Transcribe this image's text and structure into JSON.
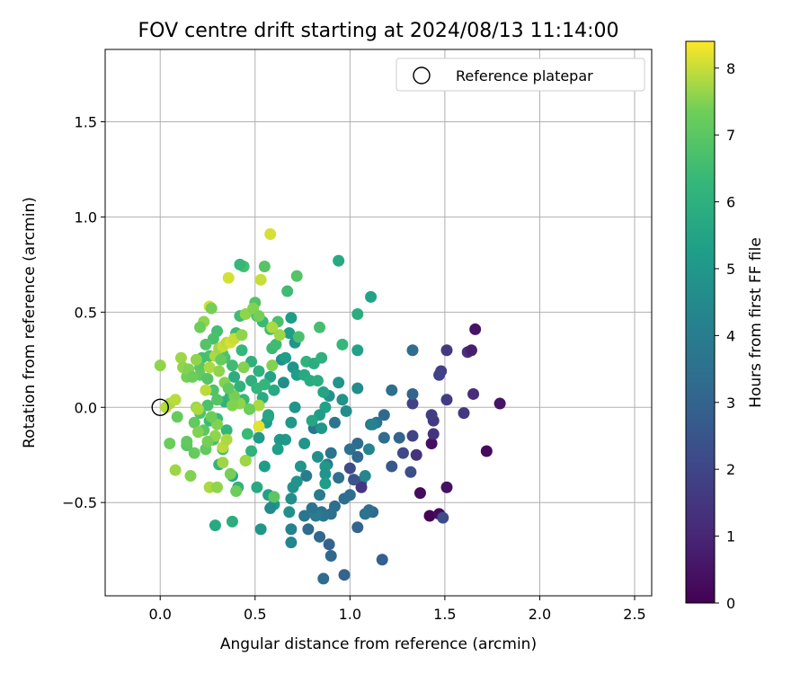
{
  "chart_data": {
    "type": "scatter",
    "title": "FOV centre drift starting at 2024/08/13 11:14:00",
    "xlabel": "Angular distance from reference (arcmin)",
    "ylabel": "Rotation from reference (arcmin)",
    "xlim": [
      -0.29,
      2.59
    ],
    "ylim": [
      -0.99,
      1.88
    ],
    "xticks": [
      0.0,
      0.5,
      1.0,
      1.5,
      2.0,
      2.5
    ],
    "xtick_labels": [
      "0.0",
      "0.5",
      "1.0",
      "1.5",
      "2.0",
      "2.5"
    ],
    "yticks": [
      -0.5,
      0.0,
      0.5,
      1.0,
      1.5
    ],
    "ytick_labels": [
      "−0.5",
      "0.0",
      "0.5",
      "1.0",
      "1.5"
    ],
    "grid": true,
    "legend": {
      "position": "top-right",
      "label": "Reference platepar",
      "marker": "open-circle"
    },
    "reference_point": {
      "x": 0.0,
      "y": 0.0
    },
    "colorbar": {
      "label": "Hours from first FF file",
      "range": [
        0,
        8.4
      ],
      "ticks": [
        0,
        1,
        2,
        3,
        4,
        5,
        6,
        7,
        8
      ],
      "tick_labels": [
        "0",
        "1",
        "2",
        "3",
        "4",
        "5",
        "6",
        "7",
        "8"
      ],
      "colormap": "viridis"
    },
    "points": [
      [
        1.66,
        0.41,
        0.5
      ],
      [
        1.79,
        0.02,
        0.5
      ],
      [
        1.72,
        -0.23,
        0.3
      ],
      [
        1.51,
        -0.42,
        0.4
      ],
      [
        1.37,
        -0.45,
        0.3
      ],
      [
        1.42,
        -0.57,
        0.1
      ],
      [
        1.43,
        -0.19,
        0.4
      ],
      [
        1.47,
        -0.56,
        0.3
      ],
      [
        1.62,
        0.29,
        1.3
      ],
      [
        1.64,
        0.3,
        0.8
      ],
      [
        1.51,
        0.3,
        1.6
      ],
      [
        1.48,
        0.19,
        1.8
      ],
      [
        1.47,
        0.17,
        1.9
      ],
      [
        1.51,
        0.04,
        1.7
      ],
      [
        1.6,
        -0.03,
        1.6
      ],
      [
        1.65,
        0.07,
        1.2
      ],
      [
        1.44,
        -0.07,
        1.6
      ],
      [
        1.43,
        -0.04,
        1.7
      ],
      [
        1.44,
        -0.14,
        1.4
      ],
      [
        1.35,
        -0.25,
        1.4
      ],
      [
        1.33,
        -0.15,
        1.9
      ],
      [
        1.28,
        -0.24,
        2.1
      ],
      [
        1.33,
        0.02,
        1.9
      ],
      [
        1.32,
        -0.34,
        2.3
      ],
      [
        1.49,
        -0.58,
        2.2
      ],
      [
        1.22,
        -0.31,
        2.6
      ],
      [
        1.33,
        0.3,
        3.3
      ],
      [
        1.33,
        0.07,
        3.0
      ],
      [
        1.26,
        -0.16,
        3.0
      ],
      [
        1.22,
        0.09,
        3.4
      ],
      [
        1.18,
        -0.04,
        3.2
      ],
      [
        1.18,
        -0.16,
        3.3
      ],
      [
        1.14,
        -0.08,
        3.6
      ],
      [
        1.11,
        -0.09,
        3.6
      ],
      [
        1.17,
        -0.8,
        2.9
      ],
      [
        1.12,
        -0.55,
        3.2
      ],
      [
        1.1,
        -0.54,
        3.4
      ],
      [
        1.08,
        -0.56,
        3.6
      ],
      [
        1.06,
        -0.39,
        3.4
      ],
      [
        1.06,
        -0.42,
        1.5
      ],
      [
        1.04,
        -0.63,
        3.0
      ],
      [
        1.04,
        -0.26,
        3.1
      ],
      [
        1.04,
        -0.19,
        3.3
      ],
      [
        1.02,
        -0.38,
        2.5
      ],
      [
        1.0,
        -0.32,
        2.2
      ],
      [
        1.0,
        -0.46,
        3.4
      ],
      [
        1.0,
        -0.22,
        3.5
      ],
      [
        0.97,
        -0.48,
        3.4
      ],
      [
        0.97,
        -0.88,
        3.0
      ],
      [
        0.94,
        -0.37,
        3.5
      ],
      [
        0.92,
        -0.52,
        3.4
      ],
      [
        0.9,
        -0.56,
        3.5
      ],
      [
        0.89,
        -0.72,
        3.0
      ],
      [
        0.9,
        -0.78,
        3.2
      ],
      [
        0.86,
        -0.9,
        3.3
      ],
      [
        0.85,
        -0.55,
        3.5
      ],
      [
        0.86,
        -0.57,
        3.7
      ],
      [
        0.84,
        -0.46,
        3.9
      ],
      [
        0.84,
        -0.68,
        3.2
      ],
      [
        0.9,
        -0.24,
        3.6
      ],
      [
        0.88,
        -0.3,
        3.8
      ],
      [
        0.92,
        -0.08,
        3.7
      ],
      [
        0.82,
        -0.57,
        3.9
      ],
      [
        0.81,
        -0.11,
        3.8
      ],
      [
        0.8,
        -0.53,
        3.6
      ],
      [
        0.78,
        -0.64,
        3.3
      ],
      [
        0.77,
        -0.36,
        3.9
      ],
      [
        0.76,
        -0.57,
        3.7
      ],
      [
        1.1,
        -0.22,
        4.3
      ],
      [
        1.12,
        -0.09,
        4.2
      ],
      [
        1.08,
        -0.36,
        4.4
      ],
      [
        1.04,
        0.1,
        4.6
      ],
      [
        1.04,
        0.3,
        5.4
      ],
      [
        1.04,
        0.49,
        5.9
      ],
      [
        1.11,
        0.58,
        5.4
      ],
      [
        0.94,
        0.77,
        5.7
      ],
      [
        0.94,
        0.13,
        4.9
      ],
      [
        0.96,
        0.04,
        4.8
      ],
      [
        0.98,
        -0.02,
        4.6
      ],
      [
        0.89,
        0.06,
        4.8
      ],
      [
        0.86,
        0.08,
        5.5
      ],
      [
        0.87,
        0.0,
        5.4
      ],
      [
        0.85,
        -0.11,
        5.0
      ],
      [
        0.84,
        -0.04,
        5.2
      ],
      [
        0.8,
        -0.07,
        5.6
      ],
      [
        0.83,
        -0.26,
        4.7
      ],
      [
        0.87,
        -0.31,
        5.0
      ],
      [
        0.87,
        -0.35,
        4.9
      ],
      [
        0.87,
        -0.4,
        5.2
      ],
      [
        0.76,
        -0.19,
        4.9
      ],
      [
        0.74,
        -0.31,
        4.9
      ],
      [
        0.72,
        -0.39,
        4.9
      ],
      [
        0.7,
        -0.42,
        4.8
      ],
      [
        0.69,
        -0.48,
        4.7
      ],
      [
        0.68,
        -0.55,
        4.7
      ],
      [
        0.69,
        -0.64,
        4.2
      ],
      [
        0.69,
        -0.71,
        4.3
      ],
      [
        0.69,
        -0.08,
        5.0
      ],
      [
        0.71,
        0.0,
        4.9
      ],
      [
        0.66,
        -0.17,
        5.1
      ],
      [
        0.63,
        -0.17,
        5.0
      ],
      [
        0.65,
        0.13,
        4.6
      ],
      [
        0.64,
        0.25,
        4.6
      ],
      [
        0.66,
        0.26,
        5.2
      ],
      [
        0.69,
        0.47,
        5.2
      ],
      [
        0.68,
        0.39,
        5.3
      ],
      [
        0.71,
        0.34,
        4.9
      ],
      [
        0.7,
        0.21,
        4.9
      ],
      [
        0.72,
        0.17,
        5.3
      ],
      [
        0.76,
        0.17,
        5.7
      ],
      [
        0.77,
        0.24,
        6.1
      ],
      [
        0.79,
        0.14,
        5.8
      ],
      [
        0.81,
        0.23,
        5.9
      ],
      [
        0.85,
        0.26,
        6.0
      ],
      [
        0.83,
        0.14,
        5.9
      ],
      [
        0.96,
        0.33,
        6.3
      ],
      [
        0.6,
        -0.51,
        4.9
      ],
      [
        0.58,
        -0.53,
        4.5
      ],
      [
        0.57,
        -0.46,
        5.3
      ],
      [
        0.55,
        -0.31,
        5.2
      ],
      [
        0.52,
        -0.16,
        5.1
      ],
      [
        0.56,
        -0.08,
        5.2
      ],
      [
        0.57,
        -0.05,
        5.4
      ],
      [
        0.62,
        -0.22,
        5.3
      ],
      [
        0.53,
        -0.64,
        5.0
      ],
      [
        0.57,
        -0.04,
        5.6
      ],
      [
        0.6,
        0.09,
        5.7
      ],
      [
        0.58,
        0.16,
        5.4
      ],
      [
        0.38,
        -0.6,
        5.9
      ],
      [
        0.29,
        -0.62,
        5.7
      ],
      [
        0.51,
        -0.42,
        5.7
      ],
      [
        0.45,
        -0.28,
        5.9
      ],
      [
        0.48,
        -0.23,
        6.1
      ],
      [
        0.46,
        -0.14,
        6.4
      ],
      [
        0.38,
        -0.36,
        5.6
      ],
      [
        0.41,
        -0.42,
        6.1
      ],
      [
        0.35,
        -0.12,
        6.2
      ],
      [
        0.33,
        -0.22,
        6.4
      ],
      [
        0.31,
        -0.3,
        6.1
      ],
      [
        0.28,
        -0.17,
        6.6
      ],
      [
        0.26,
        -0.07,
        6.4
      ],
      [
        0.3,
        -0.06,
        6.4
      ],
      [
        0.34,
        0.03,
        6.1
      ],
      [
        0.37,
        0.06,
        6.2
      ],
      [
        0.39,
        0.16,
        5.9
      ],
      [
        0.42,
        0.11,
        6.1
      ],
      [
        0.44,
        0.04,
        6.3
      ],
      [
        0.48,
        0.14,
        6.0
      ],
      [
        0.48,
        0.24,
        6.0
      ],
      [
        0.51,
        0.1,
        6.2
      ],
      [
        0.52,
        0.19,
        6.0
      ],
      [
        0.54,
        0.05,
        5.8
      ],
      [
        0.55,
        0.12,
        6.2
      ],
      [
        0.59,
        0.31,
        6.4
      ],
      [
        0.61,
        0.33,
        6.5
      ],
      [
        0.58,
        0.41,
        6.5
      ],
      [
        0.54,
        0.45,
        6.4
      ],
      [
        0.51,
        0.48,
        6.6
      ],
      [
        0.5,
        0.55,
        6.8
      ],
      [
        0.44,
        0.74,
        6.6
      ],
      [
        0.42,
        0.75,
        6.3
      ],
      [
        0.55,
        0.74,
        6.9
      ],
      [
        0.67,
        0.61,
        6.5
      ],
      [
        0.72,
        0.69,
        6.9
      ],
      [
        0.84,
        0.42,
        6.6
      ],
      [
        0.73,
        0.37,
        6.7
      ],
      [
        0.62,
        0.45,
        6.7
      ],
      [
        0.42,
        0.48,
        6.5
      ],
      [
        0.4,
        0.39,
        6.4
      ],
      [
        0.43,
        0.3,
        6.3
      ],
      [
        0.38,
        0.22,
        6.5
      ],
      [
        0.34,
        0.26,
        6.7
      ],
      [
        0.33,
        0.28,
        6.8
      ],
      [
        0.3,
        0.4,
        6.6
      ],
      [
        0.28,
        0.36,
        6.7
      ],
      [
        0.24,
        0.33,
        6.9
      ],
      [
        0.26,
        0.27,
        6.7
      ],
      [
        0.22,
        0.26,
        6.6
      ],
      [
        0.21,
        0.21,
        7.0
      ],
      [
        0.21,
        0.17,
        7.1
      ],
      [
        0.25,
        0.15,
        6.9
      ],
      [
        0.28,
        0.09,
        6.8
      ],
      [
        0.3,
        0.04,
        6.9
      ],
      [
        0.25,
        0.01,
        6.7
      ],
      [
        0.21,
        -0.03,
        6.8
      ],
      [
        0.18,
        -0.08,
        7.1
      ],
      [
        0.23,
        -0.12,
        7.0
      ],
      [
        0.24,
        -0.22,
        7.1
      ],
      [
        0.18,
        -0.24,
        7.2
      ],
      [
        0.14,
        -0.2,
        7.0
      ],
      [
        0.14,
        -0.18,
        7.1
      ],
      [
        0.09,
        -0.05,
        7.2
      ],
      [
        0.05,
        -0.19,
        7.3
      ],
      [
        0.0,
        0.22,
        7.6
      ],
      [
        0.03,
        0.0,
        7.9
      ],
      [
        0.05,
        0.02,
        7.8
      ],
      [
        0.08,
        0.04,
        7.9
      ],
      [
        0.11,
        0.26,
        7.7
      ],
      [
        0.12,
        0.21,
        7.6
      ],
      [
        0.14,
        0.16,
        7.4
      ],
      [
        0.15,
        0.2,
        7.5
      ],
      [
        0.17,
        0.16,
        7.3
      ],
      [
        0.19,
        0.25,
        7.6
      ],
      [
        0.19,
        0.0,
        7.7
      ],
      [
        0.2,
        -0.01,
        7.8
      ],
      [
        0.16,
        -0.36,
        7.5
      ],
      [
        0.08,
        -0.33,
        7.7
      ],
      [
        0.26,
        -0.42,
        7.8
      ],
      [
        0.3,
        -0.42,
        7.6
      ],
      [
        0.33,
        -0.29,
        7.7
      ],
      [
        0.33,
        -0.21,
        7.9
      ],
      [
        0.35,
        -0.17,
        7.8
      ],
      [
        0.37,
        -0.35,
        7.4
      ],
      [
        0.4,
        -0.44,
        7.3
      ],
      [
        0.29,
        -0.15,
        7.6
      ],
      [
        0.3,
        -0.09,
        7.5
      ],
      [
        0.24,
        0.09,
        7.9
      ],
      [
        0.26,
        0.21,
        7.8
      ],
      [
        0.29,
        0.27,
        7.8
      ],
      [
        0.31,
        0.31,
        7.7
      ],
      [
        0.33,
        0.32,
        8.0
      ],
      [
        0.35,
        0.34,
        7.9
      ],
      [
        0.37,
        0.34,
        8.1
      ],
      [
        0.39,
        0.36,
        8.0
      ],
      [
        0.43,
        0.38,
        7.6
      ],
      [
        0.45,
        0.49,
        7.6
      ],
      [
        0.49,
        0.52,
        7.5
      ],
      [
        0.52,
        0.48,
        7.4
      ],
      [
        0.26,
        0.53,
        8.1
      ],
      [
        0.36,
        0.68,
        8.1
      ],
      [
        0.53,
        0.67,
        8.0
      ],
      [
        0.59,
        0.42,
        7.8
      ],
      [
        0.63,
        0.38,
        7.7
      ],
      [
        0.59,
        0.22,
        7.5
      ],
      [
        0.52,
        0.01,
        7.8
      ],
      [
        0.52,
        -0.1,
        8.2
      ],
      [
        0.45,
        -0.28,
        7.7
      ],
      [
        0.6,
        -0.47,
        7.0
      ],
      [
        0.47,
        -0.01,
        7.3
      ],
      [
        0.42,
        0.02,
        7.6
      ],
      [
        0.39,
        0.06,
        7.4
      ],
      [
        0.34,
        0.13,
        7.5
      ],
      [
        0.31,
        0.19,
        7.6
      ],
      [
        0.44,
        0.21,
        7.5
      ],
      [
        0.58,
        0.91,
        8.1
      ],
      [
        0.23,
        0.45,
        7.6
      ],
      [
        0.21,
        0.42,
        7.3
      ],
      [
        0.27,
        0.52,
        7.4
      ],
      [
        0.32,
        0.25,
        7.2
      ],
      [
        0.36,
        0.1,
        7.1
      ],
      [
        0.38,
        0.01,
        7.5
      ],
      [
        0.27,
        -0.05,
        7.3
      ],
      [
        0.25,
        -0.18,
        7.4
      ],
      [
        0.2,
        -0.13,
        7.5
      ]
    ]
  }
}
